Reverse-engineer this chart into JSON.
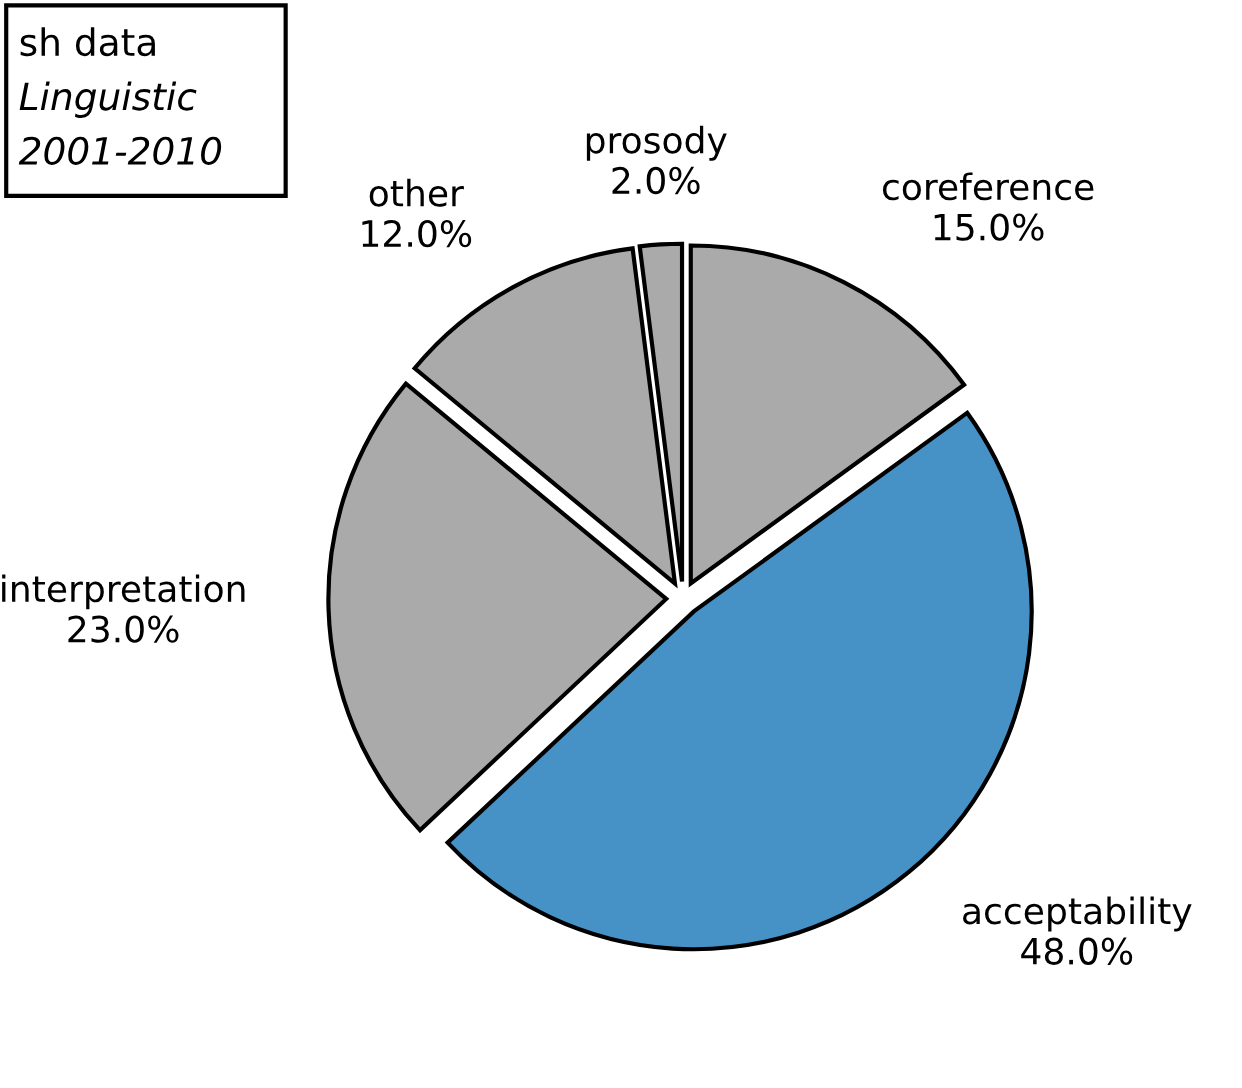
{
  "chart_data": {
    "type": "pie",
    "categories": [
      "coreference",
      "acceptability",
      "interpretation",
      "other",
      "prosody"
    ],
    "values": [
      15,
      48,
      23,
      12,
      2
    ],
    "value_labels": [
      "15.0%",
      "48.0%",
      "23.0%",
      "12.0%",
      "2.0%"
    ],
    "colors": [
      "#aaaaaa",
      "#4692c6",
      "#aaaaaa",
      "#aaaaaa",
      "#aaaaaa"
    ],
    "annotations": [
      "sh data",
      "Linguistic",
      "2001-2010"
    ],
    "legend": false
  }
}
